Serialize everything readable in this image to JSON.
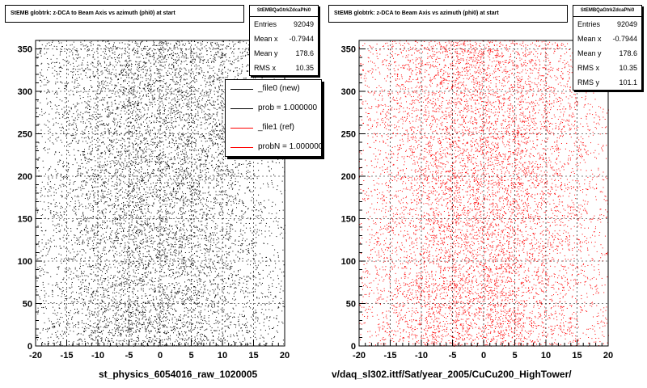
{
  "panels": [
    {
      "title": "StEMB globtrk: z-DCA to Beam Axis vs azimuth (phi0) at start",
      "stats": {
        "name": "StEMBQaGtrkZdcaPhi0",
        "rows": [
          {
            "label": "Entries",
            "value": "92049"
          },
          {
            "label": "Mean x",
            "value": "-0.7944"
          },
          {
            "label": "Mean y",
            "value": "178.6"
          },
          {
            "label": "RMS x",
            "value": "10.35"
          }
        ]
      },
      "legend": [
        {
          "label": "_file0 (new)",
          "color": "#000000"
        },
        {
          "label": "prob = 1.000000",
          "color": "#000000"
        },
        {
          "label": "_file1 (ref)",
          "color": "#ff0000"
        },
        {
          "label": "probN = 1.000000",
          "color": "#ff0000"
        }
      ],
      "footer": "st_physics_6054016_raw_1020005",
      "point_color": "#000000"
    },
    {
      "title": "StEMB globtrk: z-DCA to Beam Axis vs azimuth (phi0) at start",
      "stats": {
        "name": "StEMBQaGtrkZdcaPhi0",
        "rows": [
          {
            "label": "Entries",
            "value": "92049"
          },
          {
            "label": "Mean x",
            "value": "-0.7944"
          },
          {
            "label": "Mean y",
            "value": "178.6"
          },
          {
            "label": "RMS x",
            "value": "10.35"
          },
          {
            "label": "RMS y",
            "value": "101.1"
          }
        ]
      },
      "footer": "v/daq_sl302.ittf/Sat/year_2005/CuCu200_HighTower/",
      "point_color": "#ff0000"
    }
  ],
  "chart_data": [
    {
      "type": "scatter",
      "title": "StEMB globtrk: z-DCA to Beam Axis vs azimuth (phi0) at start",
      "xlim": [
        -20,
        20
      ],
      "ylim": [
        0,
        360
      ],
      "x_ticks": [
        -20,
        -15,
        -10,
        -5,
        0,
        5,
        10,
        15,
        20
      ],
      "y_ticks": [
        0,
        50,
        100,
        150,
        200,
        250,
        300,
        350
      ],
      "grid": true,
      "entries": 92049,
      "mean_x": -0.7944,
      "mean_y": 178.6,
      "rms_x": 10.35,
      "series": [
        {
          "color": "#000000"
        }
      ]
    },
    {
      "type": "scatter",
      "title": "StEMB globtrk: z-DCA to Beam Axis vs azimuth (phi0) at start",
      "xlim": [
        -20,
        20
      ],
      "ylim": [
        0,
        360
      ],
      "x_ticks": [
        -20,
        -15,
        -10,
        -5,
        0,
        5,
        10,
        15,
        20
      ],
      "y_ticks": [
        0,
        50,
        100,
        150,
        200,
        250,
        300,
        350
      ],
      "grid": true,
      "entries": 92049,
      "mean_x": -0.7944,
      "mean_y": 178.6,
      "rms_x": 10.35,
      "rms_y": 101.1,
      "series": [
        {
          "color": "#ff0000"
        }
      ]
    }
  ]
}
